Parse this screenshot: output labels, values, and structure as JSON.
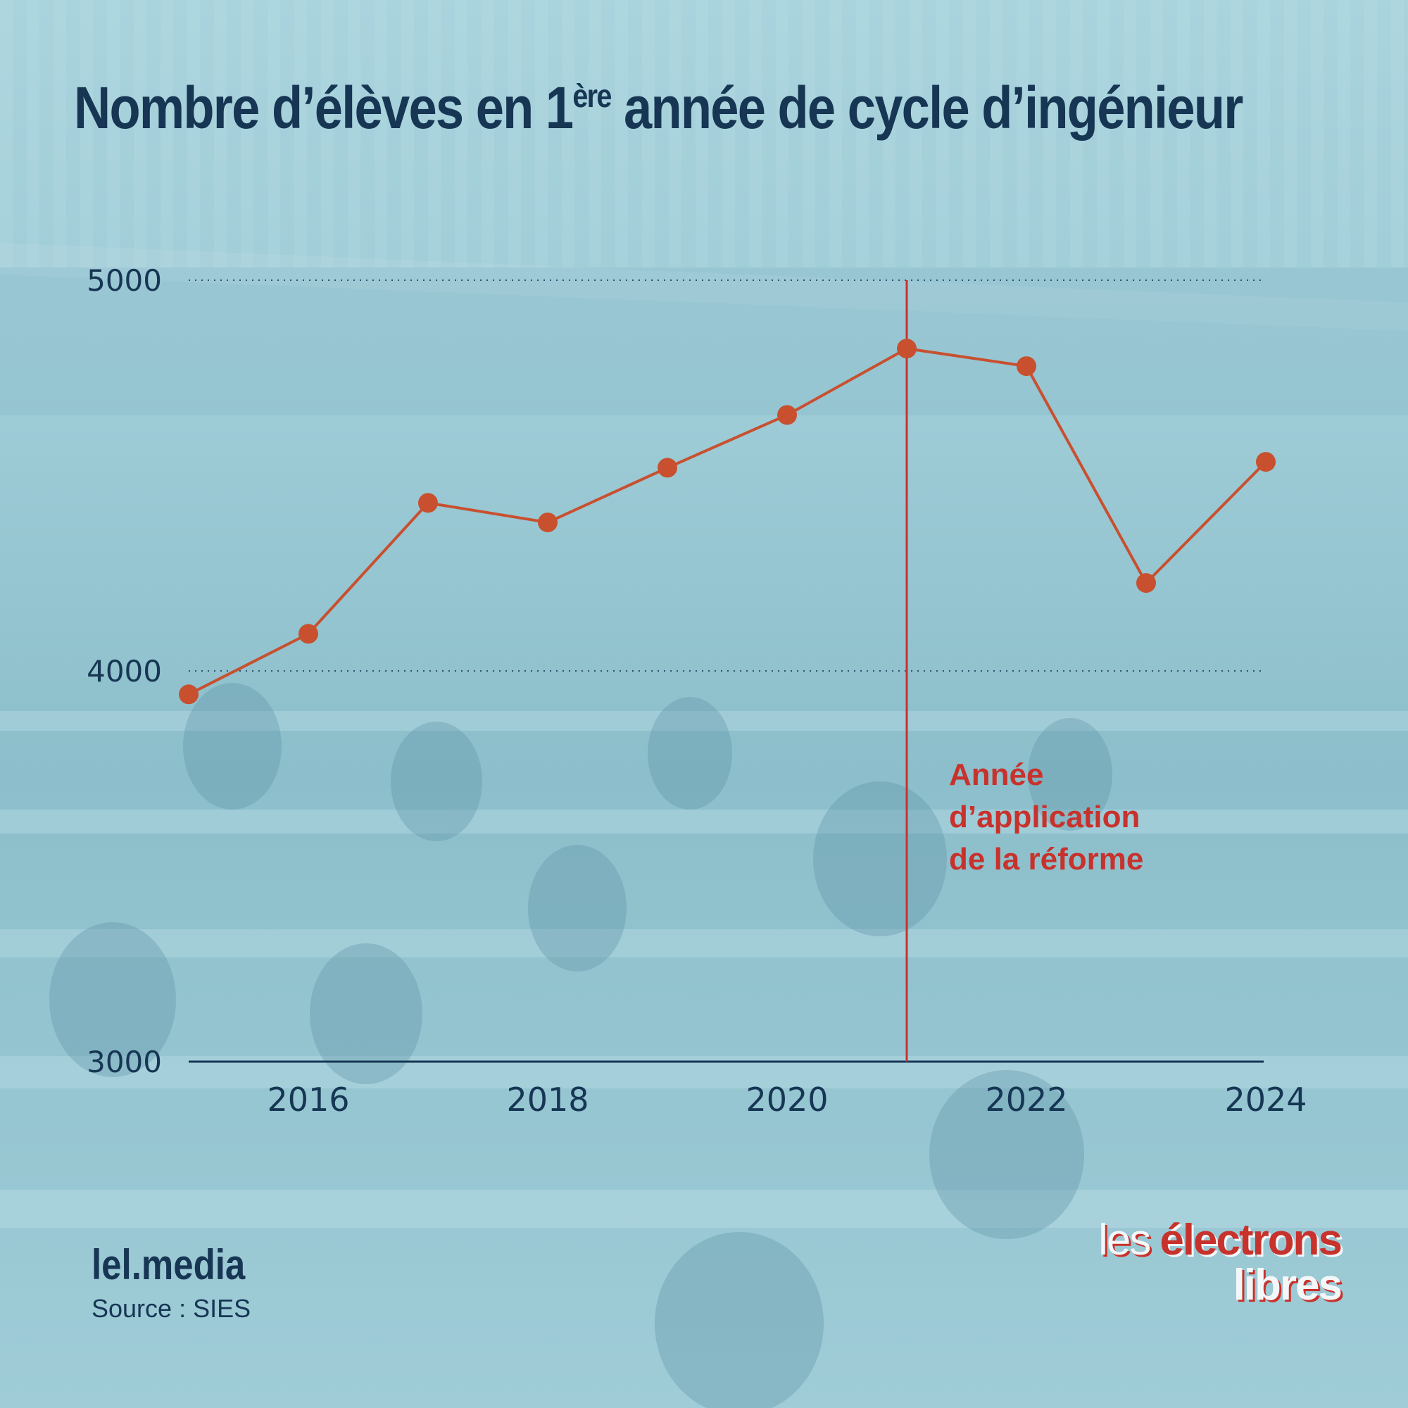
{
  "title": {
    "part1": "Nombre d’élèves en 1",
    "sup": "ère",
    "part2": " année de cycle d’ingénieur"
  },
  "colors": {
    "line": "#c8502f",
    "annotation": "#c8322c",
    "text": "#163654"
  },
  "chart_data": {
    "type": "line",
    "title": "Nombre d’élèves en 1ère année de cycle d’ingénieur",
    "xlabel": "",
    "ylabel": "",
    "x": [
      2015,
      2016,
      2017,
      2018,
      2019,
      2020,
      2021,
      2022,
      2023,
      2024
    ],
    "series": [
      {
        "values": [
          3940,
          4095,
          4430,
          4380,
          4520,
          4655,
          4825,
          4780,
          4225,
          4535
        ]
      }
    ],
    "xlim": [
      2015,
      2024
    ],
    "ylim": [
      3000,
      5000
    ],
    "x_ticks": [
      "2016",
      "2018",
      "2020",
      "2022",
      "2024"
    ],
    "y_ticks": [
      "3000",
      "4000",
      "5000"
    ],
    "grid": "dotted horizontal at 4000 and 5000",
    "reference_line": {
      "x": 2021,
      "label": [
        "Année",
        "d’application",
        "de la réforme"
      ]
    }
  },
  "footer": {
    "brand": "lel.media",
    "source": "Source : SIES",
    "logo_line1_a": "les",
    "logo_line1_b": "électrons",
    "logo_line2": "libres"
  }
}
